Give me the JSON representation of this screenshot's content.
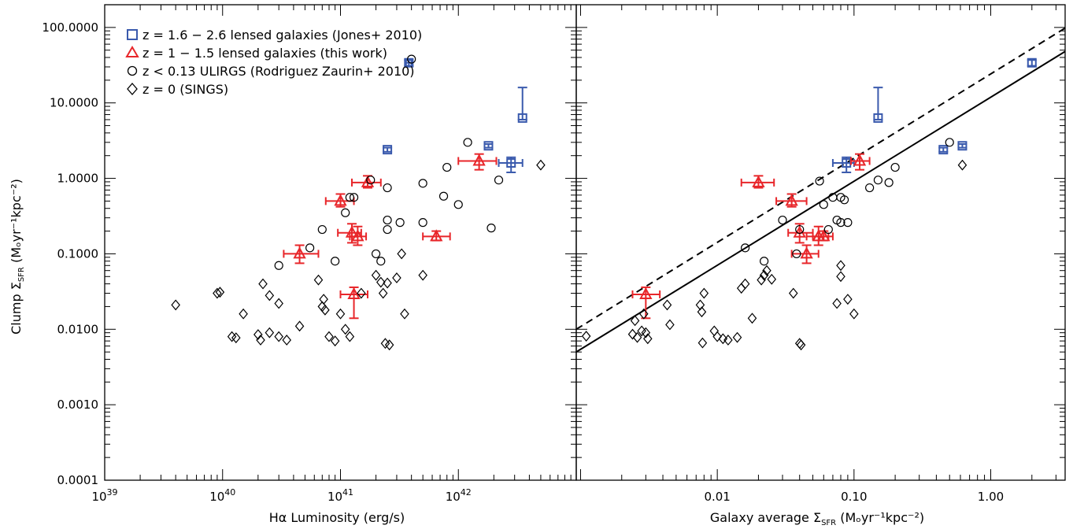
{
  "colors": {
    "jones": "#3a5aad",
    "this_work": "#e8262a",
    "ulirgs": "#000000",
    "sings": "#000000",
    "axes": "#000000"
  },
  "legend": [
    {
      "label": "z = 1.6 − 2.6 lensed galaxies (Jones+ 2010)",
      "marker": "square",
      "series": "jones"
    },
    {
      "label": "z = 1 − 1.5 lensed galaxies (this work)",
      "marker": "triangle",
      "series": "this_work"
    },
    {
      "label": "z < 0.13 ULIRGS (Rodriguez Zaurin+ 2010)",
      "marker": "circle",
      "series": "ulirgs"
    },
    {
      "label": "z = 0 (SINGS)",
      "marker": "diamond",
      "series": "sings"
    }
  ],
  "ylabel": {
    "main": "Clump Σ",
    "sub": "SFR",
    "unit": " (Mₒyr⁻¹kpc⁻²)"
  },
  "yticks": [
    "100.0000",
    "10.0000",
    "1.0000",
    "0.1000",
    "0.0100",
    "0.0010",
    "0.0001"
  ],
  "left_xlabel": "Hα Luminosity (erg/s)",
  "right_xlabel": {
    "main": "Galaxy average Σ",
    "sub": "SFR",
    "unit": " (Mₒyr⁻¹kpc⁻²)"
  },
  "left_xticks": [
    {
      "base": "10",
      "exp": "39",
      "value": 1e+39
    },
    {
      "base": "10",
      "exp": "40",
      "value": 1e+40
    },
    {
      "base": "10",
      "exp": "41",
      "value": 1e+41
    },
    {
      "base": "10",
      "exp": "42",
      "value": 1e+42
    }
  ],
  "right_xticks": [
    {
      "label": "0.01",
      "value": 0.01
    },
    {
      "label": "0.10",
      "value": 0.1
    },
    {
      "label": "1.00",
      "value": 1.0
    }
  ],
  "chart_data": [
    {
      "type": "scatter",
      "panel": "left",
      "xscale": "log",
      "yscale": "log",
      "xlim": [
        1e+39,
        1e+43
      ],
      "ylim": [
        0.0001,
        200
      ],
      "series": [
        {
          "name": "z = 1.6 − 2.6 lensed galaxies (Jones+ 2010)",
          "marker": "square",
          "color": "#3a5aad",
          "points": [
            {
              "x": 3.8e+41,
              "y": 34,
              "ylo": 31,
              "yhi": 37,
              "xlo": 3.6e+41,
              "xhi": 4e+41
            },
            {
              "x": 3.5e+42,
              "y": 6.3,
              "ylo": 6.0,
              "yhi": 16
            },
            {
              "x": 2.5e+41,
              "y": 2.4,
              "ylo": 2.25,
              "yhi": 2.55
            },
            {
              "x": 1.8e+42,
              "y": 2.7,
              "ylo": 2.55,
              "yhi": 2.85
            },
            {
              "x": 2.8e+42,
              "y": 1.6,
              "ylo": 1.2,
              "yhi": 1.9,
              "xlo": 2.2e+42,
              "xhi": 3.5e+42
            }
          ]
        },
        {
          "name": "z = 1 − 1.5 lensed galaxies (this work)",
          "marker": "triangle",
          "color": "#e8262a",
          "points": [
            {
              "x": 1.5e+42,
              "y": 1.7,
              "ylo": 1.3,
              "yhi": 2.1,
              "xlo": 1e+42,
              "xhi": 2.1e+42
            },
            {
              "x": 1.7e+41,
              "y": 0.88,
              "ylo": 0.75,
              "yhi": 1.08,
              "xlo": 1.25e+41,
              "xhi": 2.2e+41
            },
            {
              "x": 1e+41,
              "y": 0.5,
              "ylo": 0.42,
              "yhi": 0.62,
              "xlo": 7.5e+40,
              "xhi": 1.3e+41
            },
            {
              "x": 1.25e+41,
              "y": 0.19,
              "ylo": 0.14,
              "yhi": 0.25,
              "xlo": 9.5e+40,
              "xhi": 1.5e+41
            },
            {
              "x": 1.4e+41,
              "y": 0.17,
              "ylo": 0.13,
              "yhi": 0.23,
              "xlo": 1.2e+41,
              "xhi": 1.65e+41
            },
            {
              "x": 6.5e+41,
              "y": 0.17,
              "ylo": 0.15,
              "yhi": 0.2,
              "xlo": 5e+41,
              "xhi": 8.5e+41
            },
            {
              "x": 4.5e+40,
              "y": 0.1,
              "ylo": 0.075,
              "yhi": 0.13,
              "xlo": 3.3e+40,
              "xhi": 6.5e+40
            },
            {
              "x": 1.3e+41,
              "y": 0.029,
              "ylo": 0.014,
              "yhi": 0.036,
              "xlo": 1e+41,
              "xhi": 1.7e+41
            }
          ]
        },
        {
          "name": "z < 0.13 ULIRGS (Rodriguez Zaurin+ 2010)",
          "marker": "circle",
          "color": "#000000",
          "points": [
            {
              "x": 1.2e+42,
              "y": 3.0
            },
            {
              "x": 4e+41,
              "y": 38
            },
            {
              "x": 8e+41,
              "y": 1.4
            },
            {
              "x": 2.2e+42,
              "y": 0.95
            },
            {
              "x": 1.8e+41,
              "y": 0.95
            },
            {
              "x": 2.5e+41,
              "y": 0.75
            },
            {
              "x": 1.3e+41,
              "y": 0.56
            },
            {
              "x": 5e+41,
              "y": 0.86
            },
            {
              "x": 7.5e+41,
              "y": 0.58
            },
            {
              "x": 1e+42,
              "y": 0.45
            },
            {
              "x": 1.1e+41,
              "y": 0.35
            },
            {
              "x": 1.2e+41,
              "y": 0.56
            },
            {
              "x": 2.5e+41,
              "y": 0.28
            },
            {
              "x": 3.2e+41,
              "y": 0.26
            },
            {
              "x": 5e+41,
              "y": 0.26
            },
            {
              "x": 7e+40,
              "y": 0.21
            },
            {
              "x": 2.5e+41,
              "y": 0.21
            },
            {
              "x": 1.9e+42,
              "y": 0.22
            },
            {
              "x": 5.5e+40,
              "y": 0.12
            },
            {
              "x": 9e+40,
              "y": 0.08
            },
            {
              "x": 2e+41,
              "y": 0.1
            },
            {
              "x": 3e+40,
              "y": 0.07
            },
            {
              "x": 2.2e+41,
              "y": 0.08
            }
          ]
        },
        {
          "name": "z = 0 (SINGS)",
          "marker": "diamond",
          "color": "#000000",
          "points": [
            {
              "x": 5e+42,
              "y": 1.5
            },
            {
              "x": 2.2e+40,
              "y": 0.04
            },
            {
              "x": 2.5e+40,
              "y": 0.028
            },
            {
              "x": 3e+40,
              "y": 0.022
            },
            {
              "x": 6.5e+40,
              "y": 0.045
            },
            {
              "x": 4e+39,
              "y": 0.021
            },
            {
              "x": 9e+39,
              "y": 0.03
            },
            {
              "x": 9.5e+39,
              "y": 0.031
            },
            {
              "x": 1.2e+40,
              "y": 0.008
            },
            {
              "x": 1.5e+40,
              "y": 0.016
            },
            {
              "x": 1.3e+40,
              "y": 0.0077
            },
            {
              "x": 2e+40,
              "y": 0.0085
            },
            {
              "x": 2.1e+40,
              "y": 0.0072
            },
            {
              "x": 2.5e+40,
              "y": 0.009
            },
            {
              "x": 3e+40,
              "y": 0.008
            },
            {
              "x": 3.5e+40,
              "y": 0.0072
            },
            {
              "x": 4.5e+40,
              "y": 0.011
            },
            {
              "x": 7e+40,
              "y": 0.02
            },
            {
              "x": 7.2e+40,
              "y": 0.025
            },
            {
              "x": 7.4e+40,
              "y": 0.018
            },
            {
              "x": 8e+40,
              "y": 0.008
            },
            {
              "x": 9e+40,
              "y": 0.007
            },
            {
              "x": 1e+41,
              "y": 0.016
            },
            {
              "x": 1.1e+41,
              "y": 0.01
            },
            {
              "x": 1.2e+41,
              "y": 0.008
            },
            {
              "x": 1.5e+41,
              "y": 0.03
            },
            {
              "x": 2e+41,
              "y": 0.052
            },
            {
              "x": 2.2e+41,
              "y": 0.042
            },
            {
              "x": 2.3e+41,
              "y": 0.03
            },
            {
              "x": 2.4e+41,
              "y": 0.0065
            },
            {
              "x": 2.6e+41,
              "y": 0.0062
            },
            {
              "x": 3e+41,
              "y": 0.048
            },
            {
              "x": 3.3e+41,
              "y": 0.1
            },
            {
              "x": 3.5e+41,
              "y": 0.016
            },
            {
              "x": 5e+41,
              "y": 0.052
            },
            {
              "x": 2.5e+41,
              "y": 0.041
            }
          ]
        }
      ]
    },
    {
      "type": "scatter",
      "panel": "right",
      "xscale": "log",
      "yscale": "log",
      "xlim": [
        0.00093,
        3.5
      ],
      "ylim": [
        0.0001,
        200
      ],
      "series": [
        {
          "name": "z = 1.6 − 2.6 lensed galaxies (Jones+ 2010)",
          "marker": "square",
          "color": "#3a5aad",
          "points": [
            {
              "x": 2.0,
              "y": 34,
              "ylo": 31,
              "yhi": 37
            },
            {
              "x": 0.15,
              "y": 6.3,
              "ylo": 6.0,
              "yhi": 16
            },
            {
              "x": 0.45,
              "y": 2.4,
              "ylo": 2.25,
              "yhi": 2.55
            },
            {
              "x": 0.62,
              "y": 2.7,
              "ylo": 2.55,
              "yhi": 2.85
            },
            {
              "x": 0.088,
              "y": 1.6,
              "ylo": 1.2,
              "yhi": 1.9,
              "xlo": 0.07,
              "xhi": 0.1
            }
          ]
        },
        {
          "name": "z = 1 − 1.5 lensed galaxies (this work)",
          "marker": "triangle",
          "color": "#e8262a",
          "points": [
            {
              "x": 0.11,
              "y": 1.7,
              "ylo": 1.3,
              "yhi": 2.1,
              "xlo": 0.095,
              "xhi": 0.13
            },
            {
              "x": 0.02,
              "y": 0.88,
              "ylo": 0.75,
              "yhi": 1.08,
              "xlo": 0.015,
              "xhi": 0.026
            },
            {
              "x": 0.035,
              "y": 0.5,
              "ylo": 0.42,
              "yhi": 0.62,
              "xlo": 0.027,
              "xhi": 0.045
            },
            {
              "x": 0.04,
              "y": 0.19,
              "ylo": 0.14,
              "yhi": 0.25,
              "xlo": 0.033,
              "xhi": 0.05
            },
            {
              "x": 0.055,
              "y": 0.17,
              "ylo": 0.13,
              "yhi": 0.23,
              "xlo": 0.045,
              "xhi": 0.065
            },
            {
              "x": 0.06,
              "y": 0.17,
              "ylo": 0.15,
              "yhi": 0.2,
              "xlo": 0.05,
              "xhi": 0.07
            },
            {
              "x": 0.045,
              "y": 0.1,
              "ylo": 0.075,
              "yhi": 0.13,
              "xlo": 0.035,
              "xhi": 0.055
            },
            {
              "x": 0.003,
              "y": 0.029,
              "ylo": 0.014,
              "yhi": 0.036,
              "xlo": 0.0024,
              "xhi": 0.0038
            }
          ]
        },
        {
          "name": "z < 0.13 ULIRGS (Rodriguez Zaurin+ 2010)",
          "marker": "circle",
          "color": "#000000",
          "points": [
            {
              "x": 0.5,
              "y": 3.0
            },
            {
              "x": 0.2,
              "y": 1.4
            },
            {
              "x": 0.15,
              "y": 0.95
            },
            {
              "x": 0.18,
              "y": 0.88
            },
            {
              "x": 0.13,
              "y": 0.75
            },
            {
              "x": 0.07,
              "y": 0.56
            },
            {
              "x": 0.08,
              "y": 0.56
            },
            {
              "x": 0.085,
              "y": 0.52
            },
            {
              "x": 0.06,
              "y": 0.45
            },
            {
              "x": 0.056,
              "y": 0.92
            },
            {
              "x": 0.03,
              "y": 0.28
            },
            {
              "x": 0.075,
              "y": 0.28
            },
            {
              "x": 0.08,
              "y": 0.26
            },
            {
              "x": 0.09,
              "y": 0.26
            },
            {
              "x": 0.065,
              "y": 0.21
            },
            {
              "x": 0.04,
              "y": 0.21
            },
            {
              "x": 0.016,
              "y": 0.12
            },
            {
              "x": 0.022,
              "y": 0.08
            },
            {
              "x": 0.038,
              "y": 0.1
            },
            {
              "x": 0.0009,
              "y": 0.03
            }
          ]
        },
        {
          "name": "z = 0 (SINGS)",
          "marker": "diamond",
          "color": "#000000",
          "points": [
            {
              "x": 0.62,
              "y": 1.5
            },
            {
              "x": 0.08,
              "y": 0.07
            },
            {
              "x": 0.08,
              "y": 0.05
            },
            {
              "x": 0.075,
              "y": 0.022
            },
            {
              "x": 0.09,
              "y": 0.025
            },
            {
              "x": 0.1,
              "y": 0.016
            },
            {
              "x": 0.0095,
              "y": 0.0095
            },
            {
              "x": 0.01,
              "y": 0.008
            },
            {
              "x": 0.011,
              "y": 0.0075
            },
            {
              "x": 0.012,
              "y": 0.0072
            },
            {
              "x": 0.0075,
              "y": 0.021
            },
            {
              "x": 0.0077,
              "y": 0.017
            },
            {
              "x": 0.008,
              "y": 0.03
            },
            {
              "x": 0.0078,
              "y": 0.0066
            },
            {
              "x": 0.0043,
              "y": 0.021
            },
            {
              "x": 0.0045,
              "y": 0.0115
            },
            {
              "x": 0.003,
              "y": 0.009
            },
            {
              "x": 0.0031,
              "y": 0.0075
            },
            {
              "x": 0.0028,
              "y": 0.0095
            },
            {
              "x": 0.0026,
              "y": 0.0078
            },
            {
              "x": 0.0029,
              "y": 0.016
            },
            {
              "x": 0.0024,
              "y": 0.0086
            },
            {
              "x": 0.0025,
              "y": 0.013
            },
            {
              "x": 0.0011,
              "y": 0.0081
            },
            {
              "x": 0.014,
              "y": 0.0078
            },
            {
              "x": 0.015,
              "y": 0.035
            },
            {
              "x": 0.016,
              "y": 0.04
            },
            {
              "x": 0.018,
              "y": 0.014
            },
            {
              "x": 0.021,
              "y": 0.045
            },
            {
              "x": 0.022,
              "y": 0.052
            },
            {
              "x": 0.023,
              "y": 0.06
            },
            {
              "x": 0.025,
              "y": 0.046
            },
            {
              "x": 0.04,
              "y": 0.0065
            },
            {
              "x": 0.041,
              "y": 0.0062
            },
            {
              "x": 0.036,
              "y": 0.03
            }
          ]
        }
      ],
      "lines": [
        {
          "style": "solid",
          "points": [
            [
              0.00093,
              0.005
            ],
            [
              3.5,
              48
            ]
          ]
        },
        {
          "style": "dashed",
          "points": [
            [
              0.00093,
              0.01
            ],
            [
              3.5,
              98
            ]
          ]
        }
      ]
    }
  ]
}
